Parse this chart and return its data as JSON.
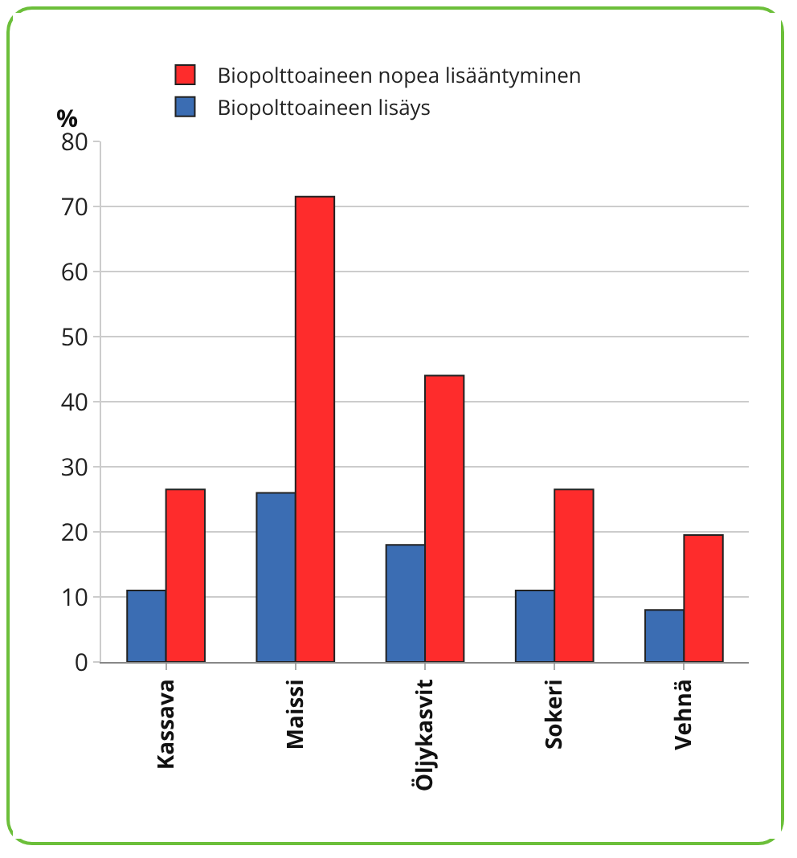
{
  "chart_data": {
    "type": "bar",
    "ylabel": "%",
    "categories": [
      "Kassava",
      "Maissi",
      "Öljykasvit",
      "Sokeri",
      "Vehnä"
    ],
    "series": [
      {
        "name": "Biopolttoaineen lisäys",
        "color": "#3b6db3",
        "values": [
          11,
          26,
          18,
          11,
          8
        ]
      },
      {
        "name": "Biopolttoaineen nopea lisääntyminen",
        "color": "#fe2c2c",
        "values": [
          26.5,
          71.5,
          44,
          26.5,
          19.5
        ]
      }
    ],
    "ylim": [
      0,
      80
    ],
    "yticks": [
      0,
      10,
      20,
      30,
      40,
      50,
      60,
      70,
      80
    ],
    "grid": "y",
    "legend": "top"
  }
}
